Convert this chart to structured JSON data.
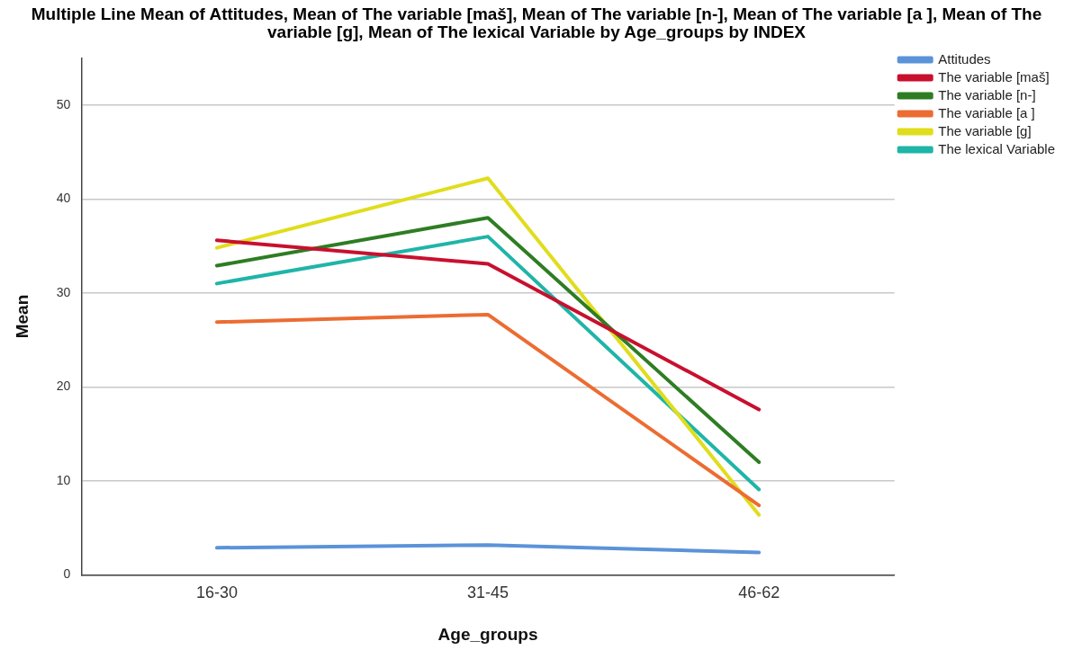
{
  "chart_data": {
    "type": "line",
    "title": "Multiple Line Mean of Attitudes, Mean of The variable [maš], Mean of The variable [n-], Mean of The variable [a ], Mean of The variable [g], Mean of The lexical Variable  by Age_groups by INDEX",
    "xlabel": "Age_groups",
    "ylabel": "Mean",
    "categories": [
      "16-30",
      "31-45",
      "46-62"
    ],
    "series": [
      {
        "name": "Attitudes",
        "color": "#5b93d9",
        "values": [
          2.9,
          3.2,
          2.4
        ]
      },
      {
        "name": "The variable [maš]",
        "color": "#c8102e",
        "values": [
          35.6,
          33.1,
          17.6
        ]
      },
      {
        "name": "The variable [n-]",
        "color": "#2e7d23",
        "values": [
          32.9,
          38.0,
          12.0
        ]
      },
      {
        "name": "The variable [a ]",
        "color": "#ec6c32",
        "values": [
          26.9,
          27.7,
          7.4
        ]
      },
      {
        "name": "The variable [g]",
        "color": "#e0dd1d",
        "values": [
          34.8,
          42.2,
          6.4
        ]
      },
      {
        "name": "The lexical Variable",
        "color": "#1fb5a8",
        "values": [
          31.0,
          36.0,
          9.1
        ]
      }
    ],
    "ylim": [
      0,
      55
    ],
    "yticks": [
      0,
      10,
      20,
      30,
      40,
      50
    ],
    "grid": "y",
    "legend": "top right",
    "marker": "none",
    "line_style": "solid"
  }
}
